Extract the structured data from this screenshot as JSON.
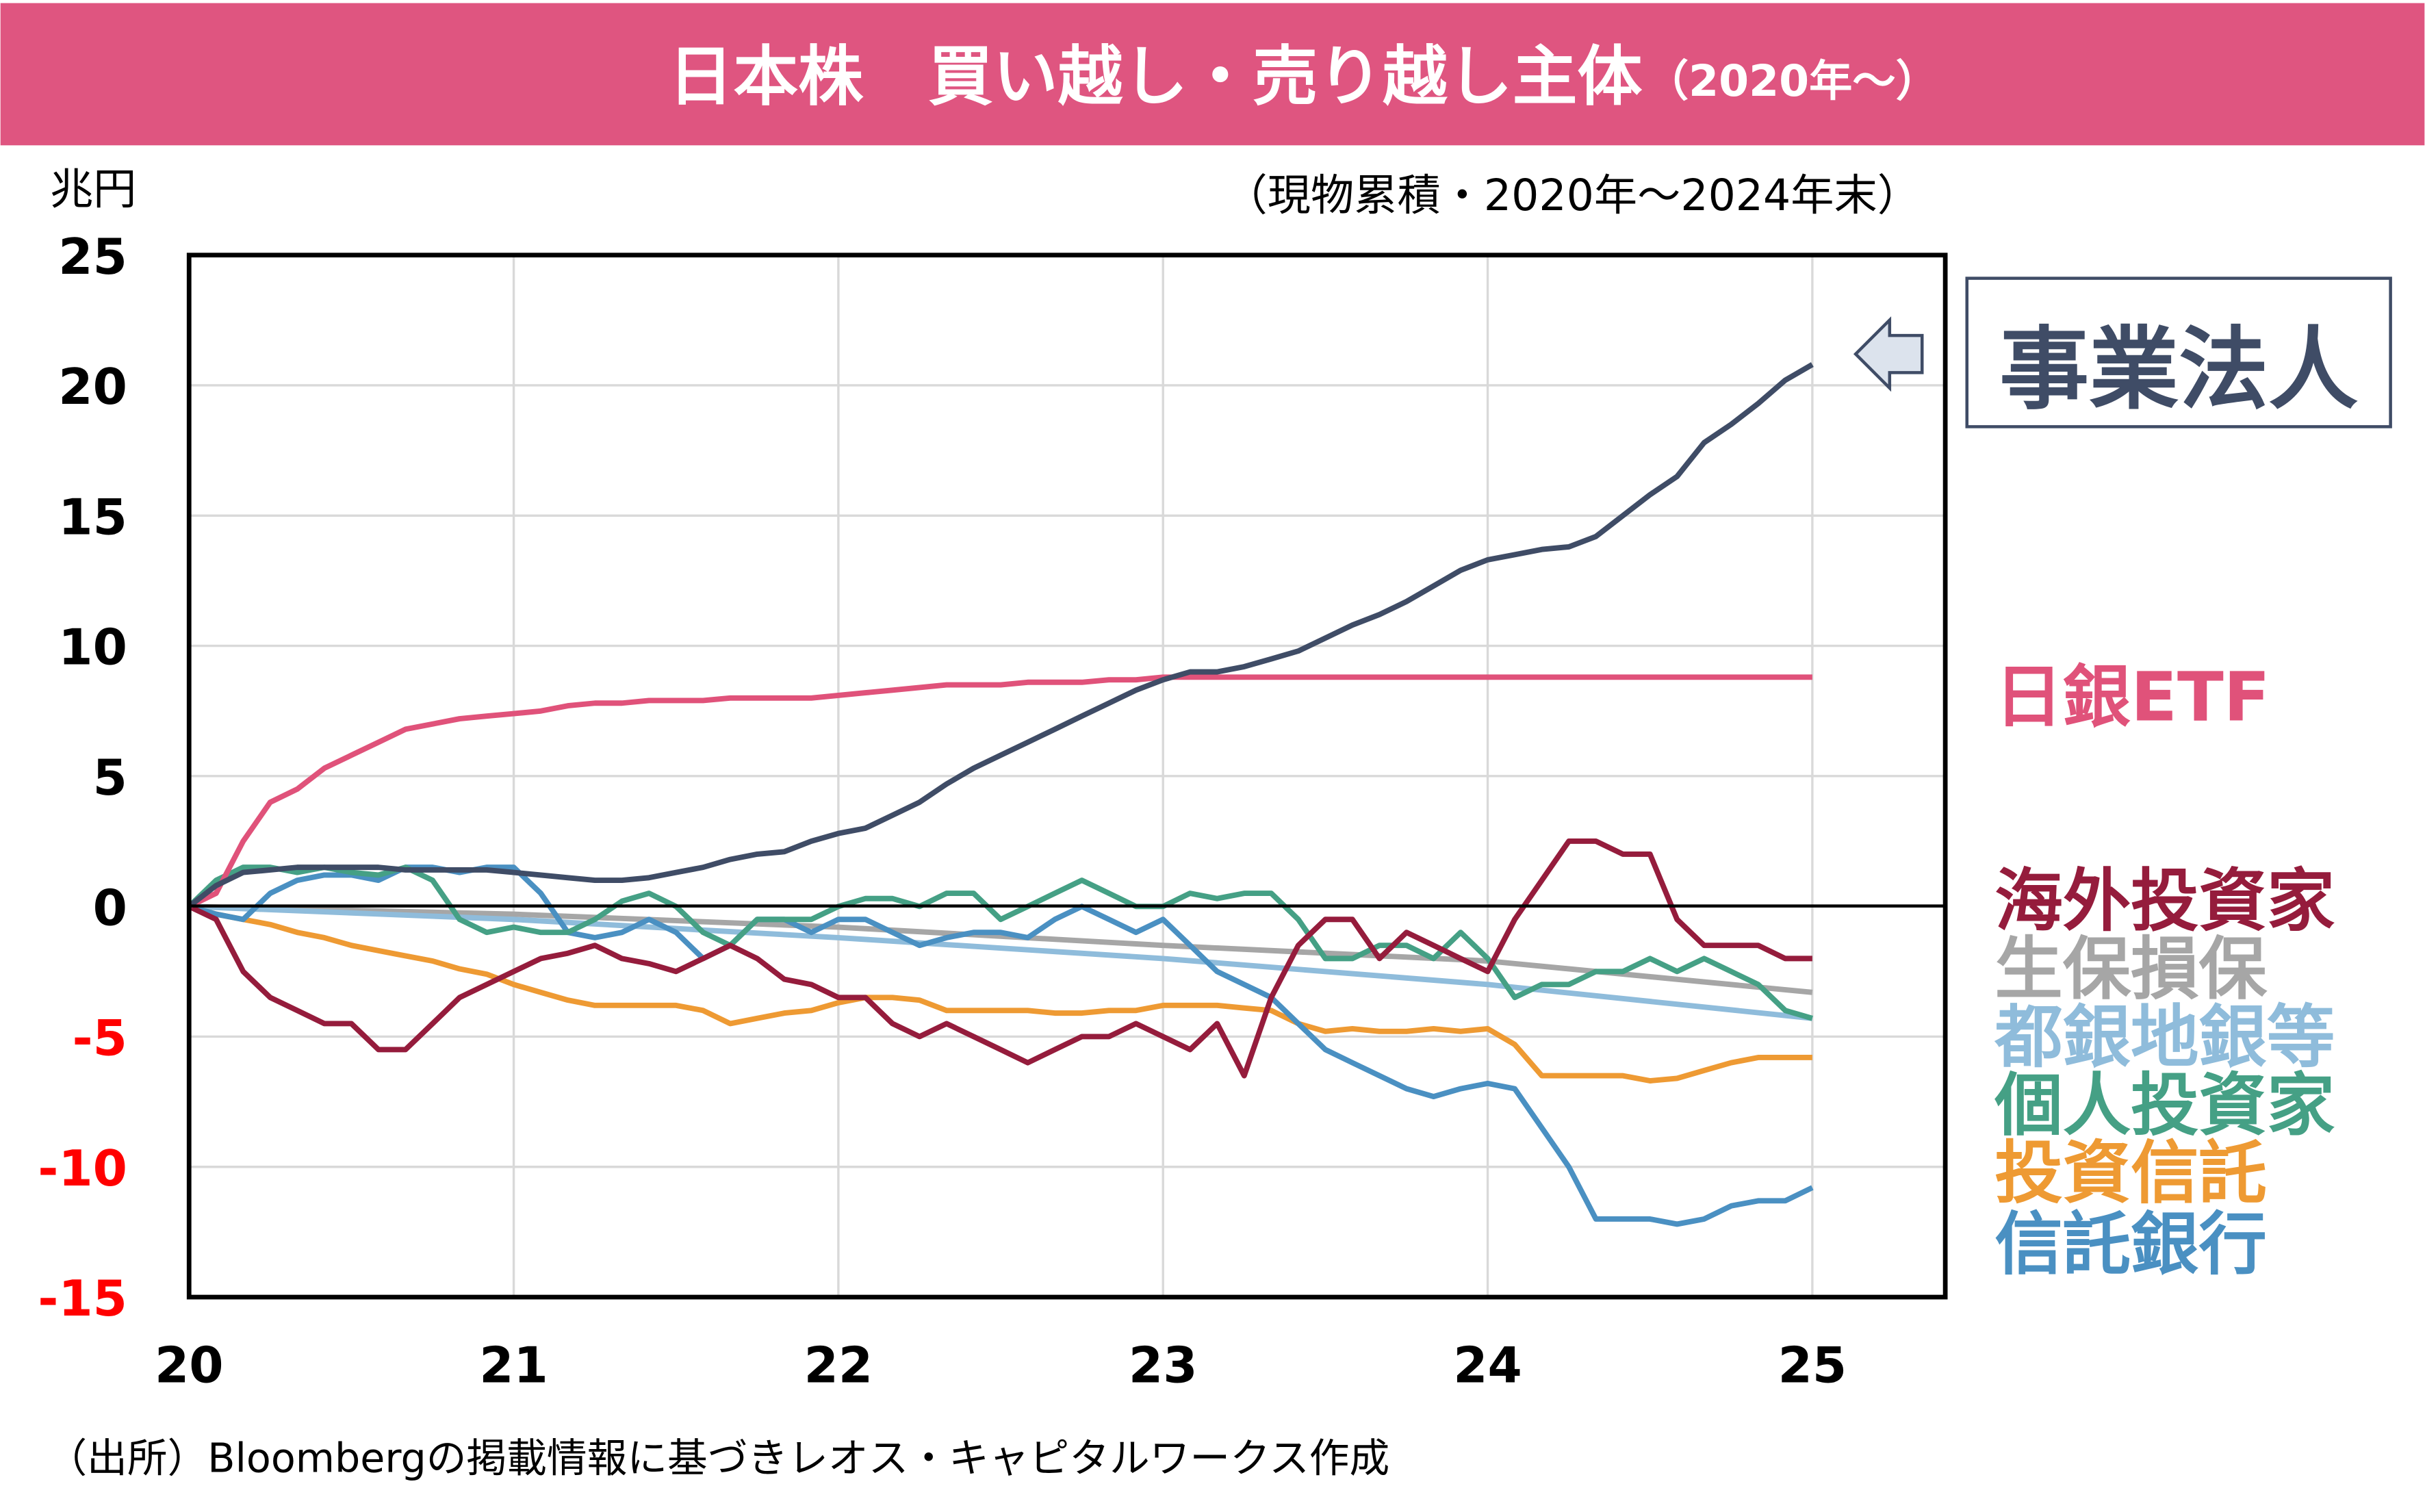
{
  "header": {
    "title": "日本株　買い越し・売り越し主体",
    "title_suffix": "（2020年〜）",
    "bar_color": "#DF5580"
  },
  "unit_label": "兆円",
  "subtitle": "（現物累積・2020年〜2024年末）",
  "source": "（出所）Bloombergの掲載情報に基づきレオス・キャピタルワークス作成",
  "chart_data": {
    "type": "line",
    "ylim": [
      -15,
      25
    ],
    "xlim": [
      20,
      25
    ],
    "y_ticks": [
      "25",
      "20",
      "15",
      "10",
      "5",
      "0",
      "-5",
      "-10",
      "-15"
    ],
    "y_tick_values": [
      25,
      20,
      15,
      10,
      5,
      0,
      -5,
      -10,
      -15
    ],
    "negative_tick_color": "#FF0000",
    "x_ticks": [
      "20",
      "21",
      "22",
      "23",
      "24",
      "25"
    ],
    "x_tick_values": [
      20,
      21,
      22,
      23,
      24,
      25
    ],
    "grid": true,
    "x_monthly": [
      "2020-01",
      "2020-02",
      "2020-03",
      "2020-04",
      "2020-05",
      "2020-06",
      "2020-07",
      "2020-08",
      "2020-09",
      "2020-10",
      "2020-11",
      "2020-12",
      "2021-01",
      "2021-02",
      "2021-03",
      "2021-04",
      "2021-05",
      "2021-06",
      "2021-07",
      "2021-08",
      "2021-09",
      "2021-10",
      "2021-11",
      "2021-12",
      "2022-01",
      "2022-02",
      "2022-03",
      "2022-04",
      "2022-05",
      "2022-06",
      "2022-07",
      "2022-08",
      "2022-09",
      "2022-10",
      "2022-11",
      "2022-12",
      "2023-01",
      "2023-02",
      "2023-03",
      "2023-04",
      "2023-05",
      "2023-06",
      "2023-07",
      "2023-08",
      "2023-09",
      "2023-10",
      "2023-11",
      "2023-12",
      "2024-01",
      "2024-02",
      "2024-03",
      "2024-04",
      "2024-05",
      "2024-06",
      "2024-07",
      "2024-08",
      "2024-09",
      "2024-10",
      "2024-11",
      "2024-12",
      "2025-01"
    ],
    "x_yearly": [
      "2020-01",
      "2021-01",
      "2022-01",
      "2023-01",
      "2024-01",
      "2025-01"
    ],
    "series": [
      {
        "name": "事業法人",
        "color": "#3F4C66",
        "x": "monthly",
        "values": [
          0,
          0.8,
          1.3,
          1.4,
          1.5,
          1.5,
          1.5,
          1.5,
          1.4,
          1.4,
          1.4,
          1.4,
          1.3,
          1.2,
          1.1,
          1.0,
          1.0,
          1.1,
          1.3,
          1.5,
          1.8,
          2.0,
          2.1,
          2.5,
          2.8,
          3.0,
          3.5,
          4.0,
          4.7,
          5.3,
          5.8,
          6.3,
          6.8,
          7.3,
          7.8,
          8.3,
          8.7,
          9.0,
          9.0,
          9.2,
          9.5,
          9.8,
          10.3,
          10.8,
          11.2,
          11.7,
          12.3,
          12.9,
          13.3,
          13.5,
          13.7,
          13.8,
          14.2,
          15.0,
          15.8,
          16.5,
          17.8,
          18.5,
          19.3,
          20.2,
          20.8
        ]
      },
      {
        "name": "日銀ETF",
        "color": "#E0527A",
        "x": "monthly",
        "values": [
          0,
          0.5,
          2.5,
          4.0,
          4.5,
          5.3,
          5.8,
          6.3,
          6.8,
          7.0,
          7.2,
          7.3,
          7.4,
          7.5,
          7.7,
          7.8,
          7.8,
          7.9,
          7.9,
          7.9,
          8.0,
          8.0,
          8.0,
          8.0,
          8.1,
          8.2,
          8.3,
          8.4,
          8.5,
          8.5,
          8.5,
          8.6,
          8.6,
          8.6,
          8.7,
          8.7,
          8.8,
          8.8,
          8.8,
          8.8,
          8.8,
          8.8,
          8.8,
          8.8,
          8.8,
          8.8,
          8.8,
          8.8,
          8.8,
          8.8,
          8.8,
          8.8,
          8.8,
          8.8,
          8.8,
          8.8,
          8.8,
          8.8,
          8.8,
          8.8,
          8.8
        ]
      },
      {
        "name": "海外投資家",
        "color": "#951C3C",
        "x": "monthly",
        "values": [
          0,
          -0.5,
          -2.5,
          -3.5,
          -4.0,
          -4.5,
          -4.5,
          -5.5,
          -5.5,
          -4.5,
          -3.5,
          -3.0,
          -2.5,
          -2.0,
          -1.8,
          -1.5,
          -2.0,
          -2.2,
          -2.5,
          -2.0,
          -1.5,
          -2.0,
          -2.8,
          -3.0,
          -3.5,
          -3.5,
          -4.5,
          -5.0,
          -4.5,
          -5.0,
          -5.5,
          -6.0,
          -5.5,
          -5.0,
          -5.0,
          -4.5,
          -5.0,
          -5.5,
          -4.5,
          -6.5,
          -3.5,
          -1.5,
          -0.5,
          -0.5,
          -2.0,
          -1.0,
          -1.5,
          -2.0,
          -2.5,
          -0.5,
          1.0,
          2.5,
          2.5,
          2.0,
          2.0,
          -0.5,
          -1.5,
          -1.5,
          -1.5,
          -2.0,
          -2.0
        ]
      },
      {
        "name": "生保損保",
        "color": "#A6A6A6",
        "x": "yearly",
        "values": [
          0,
          -0.3,
          -0.8,
          -1.5,
          -2.1,
          -3.3
        ]
      },
      {
        "name": "都銀地銀等",
        "color": "#8FBCDB",
        "x": "yearly",
        "values": [
          0,
          -0.5,
          -1.2,
          -2.0,
          -3.0,
          -4.3
        ]
      },
      {
        "name": "個人投資家",
        "color": "#45A085",
        "x": "monthly",
        "values": [
          0,
          1.0,
          1.5,
          1.5,
          1.3,
          1.5,
          1.3,
          1.2,
          1.5,
          1.0,
          -0.5,
          -1.0,
          -0.8,
          -1.0,
          -1.0,
          -0.5,
          0.2,
          0.5,
          0,
          -1.0,
          -1.5,
          -0.5,
          -0.5,
          -0.5,
          0,
          0.3,
          0.3,
          0,
          0.5,
          0.5,
          -0.5,
          0,
          0.5,
          1.0,
          0.5,
          0,
          0,
          0.5,
          0.3,
          0.5,
          0.5,
          -0.5,
          -2.0,
          -2.0,
          -1.5,
          -1.5,
          -2.0,
          -1.0,
          -2.0,
          -3.5,
          -3.0,
          -3.0,
          -2.5,
          -2.5,
          -2.0,
          -2.5,
          -2.0,
          -2.5,
          -3.0,
          -4.0,
          -4.3
        ]
      },
      {
        "name": "投資信託",
        "color": "#EE9A33",
        "x": "monthly",
        "values": [
          0,
          -0.3,
          -0.5,
          -0.7,
          -1.0,
          -1.2,
          -1.5,
          -1.7,
          -1.9,
          -2.1,
          -2.4,
          -2.6,
          -3.0,
          -3.3,
          -3.6,
          -3.8,
          -3.8,
          -3.8,
          -3.8,
          -4.0,
          -4.5,
          -4.3,
          -4.1,
          -4.0,
          -3.7,
          -3.5,
          -3.5,
          -3.6,
          -4.0,
          -4.0,
          -4.0,
          -4.0,
          -4.1,
          -4.1,
          -4.0,
          -4.0,
          -3.8,
          -3.8,
          -3.8,
          -3.9,
          -4.0,
          -4.5,
          -4.8,
          -4.7,
          -4.8,
          -4.8,
          -4.7,
          -4.8,
          -4.7,
          -5.3,
          -6.5,
          -6.5,
          -6.5,
          -6.5,
          -6.7,
          -6.6,
          -6.3,
          -6.0,
          -5.8,
          -5.8,
          -5.8
        ]
      },
      {
        "name": "信託銀行",
        "color": "#4A90C2",
        "x": "monthly",
        "values": [
          0,
          -0.3,
          -0.5,
          0.5,
          1.0,
          1.2,
          1.2,
          1.0,
          1.5,
          1.5,
          1.3,
          1.5,
          1.5,
          0.5,
          -1.0,
          -1.2,
          -1.0,
          -0.5,
          -1.0,
          -2.0,
          -1.5,
          -0.5,
          -0.5,
          -1.0,
          -0.5,
          -0.5,
          -1.0,
          -1.5,
          -1.2,
          -1.0,
          -1.0,
          -1.2,
          -0.5,
          0,
          -0.5,
          -1.0,
          -0.5,
          -1.5,
          -2.5,
          -3.0,
          -3.5,
          -4.5,
          -5.5,
          -6.0,
          -6.5,
          -7.0,
          -7.3,
          -7.0,
          -6.8,
          -7.0,
          -8.5,
          -10.0,
          -12.0,
          -12.0,
          -12.0,
          -12.2,
          -12.0,
          -11.5,
          -11.3,
          -11.3,
          -10.8
        ]
      }
    ],
    "draw_order": [
      3,
      4,
      6,
      7,
      5,
      2,
      1,
      0
    ]
  },
  "labels": {
    "corporations": "事業法人",
    "boj": "日銀ETF",
    "legend": [
      "海外投資家",
      "生保損保",
      "都銀地銀等",
      "個人投資家",
      "投資信託",
      "信託銀行"
    ]
  }
}
